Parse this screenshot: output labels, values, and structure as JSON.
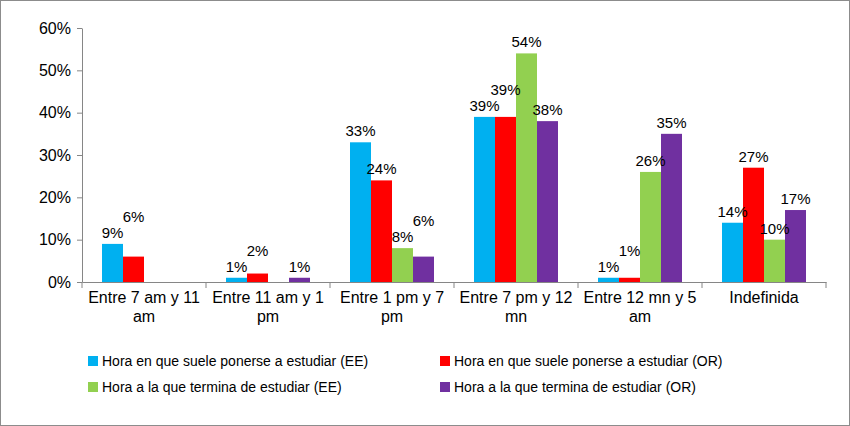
{
  "chart_data": {
    "type": "bar",
    "categories": [
      "Entre 7 am y 11 am",
      "Entre 11 am y 1 pm",
      "Entre 1 pm y 7 pm",
      "Entre 7 pm y 12 mn",
      "Entre 12 mn y 5 am",
      "Indefinida"
    ],
    "series": [
      {
        "name": "Hora en que suele ponerse a estudiar (EE)",
        "color": "#00b0f0",
        "values": [
          9,
          1,
          33,
          39,
          1,
          14
        ],
        "value_labels": [
          "9%",
          "1%",
          "33%",
          "39%",
          "1%",
          "14%"
        ]
      },
      {
        "name": "Hora en que suele ponerse a estudiar (OR)",
        "color": "#ff0000",
        "values": [
          6,
          2,
          24,
          39,
          1,
          27
        ],
        "value_labels": [
          "6%",
          "2%",
          "24%",
          "39%",
          "1%",
          "27%"
        ]
      },
      {
        "name": "Hora a la que termina de estudiar (EE)",
        "color": "#92d050",
        "values": [
          null,
          null,
          8,
          54,
          26,
          10
        ],
        "value_labels": [
          null,
          null,
          "8%",
          "54%",
          "26%",
          "10%"
        ]
      },
      {
        "name": "Hora a la que termina de estudiar (OR)",
        "color": "#7030a0",
        "values": [
          null,
          1,
          6,
          38,
          35,
          17
        ],
        "value_labels": [
          null,
          "1%",
          "6%",
          "38%",
          "35%",
          "17%"
        ]
      }
    ],
    "ylim": [
      0,
      60
    ],
    "yticks": [
      {
        "value": 0,
        "label": "0%"
      },
      {
        "value": 10,
        "label": "10%"
      },
      {
        "value": 20,
        "label": "20%"
      },
      {
        "value": 30,
        "label": "30%"
      },
      {
        "value": 40,
        "label": "40%"
      },
      {
        "value": 50,
        "label": "50%"
      },
      {
        "value": 60,
        "label": "60%"
      }
    ],
    "grid": false,
    "legend": "bottom",
    "data_labels": true
  }
}
